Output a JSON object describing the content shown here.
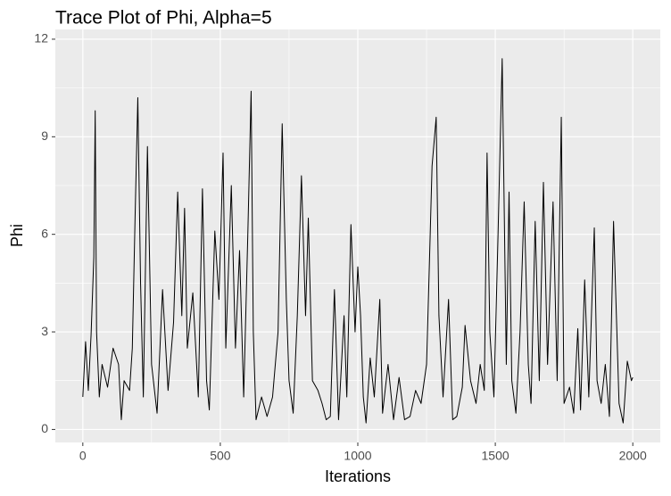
{
  "chart_data": {
    "type": "line",
    "title": "Trace Plot of Phi, Alpha=5",
    "x_label": "Iterations",
    "y_label": "Phi",
    "x": [
      0,
      10,
      20,
      30,
      40,
      45,
      50,
      60,
      70,
      90,
      110,
      130,
      140,
      150,
      170,
      180,
      190,
      200,
      210,
      220,
      235,
      250,
      270,
      290,
      310,
      330,
      345,
      360,
      370,
      380,
      400,
      420,
      435,
      450,
      460,
      480,
      495,
      510,
      520,
      540,
      555,
      570,
      585,
      600,
      612,
      620,
      630,
      650,
      670,
      690,
      710,
      725,
      740,
      750,
      765,
      780,
      795,
      810,
      820,
      835,
      855,
      870,
      885,
      900,
      915,
      930,
      950,
      960,
      975,
      990,
      1000,
      1010,
      1020,
      1030,
      1045,
      1060,
      1080,
      1090,
      1110,
      1130,
      1150,
      1170,
      1190,
      1210,
      1230,
      1250,
      1260,
      1270,
      1285,
      1295,
      1310,
      1330,
      1345,
      1360,
      1380,
      1390,
      1410,
      1430,
      1445,
      1460,
      1470,
      1480,
      1495,
      1510,
      1525,
      1540,
      1550,
      1560,
      1575,
      1590,
      1605,
      1620,
      1630,
      1645,
      1660,
      1675,
      1690,
      1710,
      1725,
      1740,
      1750,
      1770,
      1785,
      1800,
      1810,
      1825,
      1840,
      1860,
      1870,
      1885,
      1900,
      1915,
      1930,
      1950,
      1965,
      1980,
      1995,
      2000
    ],
    "series": [
      {
        "name": "Phi",
        "color": "#000000",
        "values": [
          1.0,
          2.7,
          1.2,
          2.9,
          5.3,
          9.8,
          3.0,
          1.0,
          2.0,
          1.3,
          2.5,
          2.0,
          0.3,
          1.5,
          1.2,
          2.5,
          6.5,
          10.2,
          4.5,
          1.0,
          8.7,
          2.0,
          0.5,
          4.3,
          1.2,
          3.3,
          7.3,
          3.5,
          6.8,
          2.5,
          4.2,
          1.0,
          7.4,
          1.5,
          0.6,
          6.1,
          4.0,
          8.5,
          2.5,
          7.5,
          2.5,
          5.5,
          1.0,
          6.0,
          10.4,
          3.0,
          0.3,
          1.0,
          0.4,
          1.0,
          3.0,
          9.4,
          4.0,
          1.5,
          0.5,
          3.5,
          7.8,
          3.5,
          6.5,
          1.5,
          1.2,
          0.8,
          0.3,
          0.4,
          4.3,
          0.3,
          3.5,
          1.0,
          6.3,
          3.0,
          5.0,
          3.5,
          1.0,
          0.2,
          2.2,
          1.0,
          4.0,
          0.5,
          2.0,
          0.3,
          1.6,
          0.3,
          0.4,
          1.2,
          0.8,
          2.0,
          5.0,
          8.1,
          9.6,
          3.5,
          1.0,
          4.0,
          0.3,
          0.4,
          1.3,
          3.2,
          1.5,
          0.8,
          2.0,
          1.2,
          8.5,
          3.0,
          1.0,
          6.0,
          11.4,
          2.0,
          7.3,
          1.5,
          0.5,
          3.0,
          7.0,
          2.0,
          0.8,
          6.4,
          1.5,
          7.6,
          2.0,
          7.0,
          1.5,
          9.6,
          0.8,
          1.3,
          0.5,
          3.1,
          0.6,
          4.6,
          1.0,
          6.2,
          1.5,
          0.8,
          2.0,
          0.4,
          6.4,
          0.8,
          0.2,
          2.1,
          1.5,
          1.6
        ]
      }
    ],
    "xlim": [
      -100,
      2100
    ],
    "ylim": [
      -0.4,
      12.3
    ],
    "xticks": [
      0,
      500,
      1000,
      1500,
      2000
    ],
    "yticks": [
      0,
      3,
      6,
      9,
      12
    ],
    "x_minor_ticks": [
      250,
      750,
      1250,
      1750
    ],
    "y_minor_ticks": [
      1.5,
      4.5,
      7.5,
      10.5
    ],
    "grid": true
  }
}
